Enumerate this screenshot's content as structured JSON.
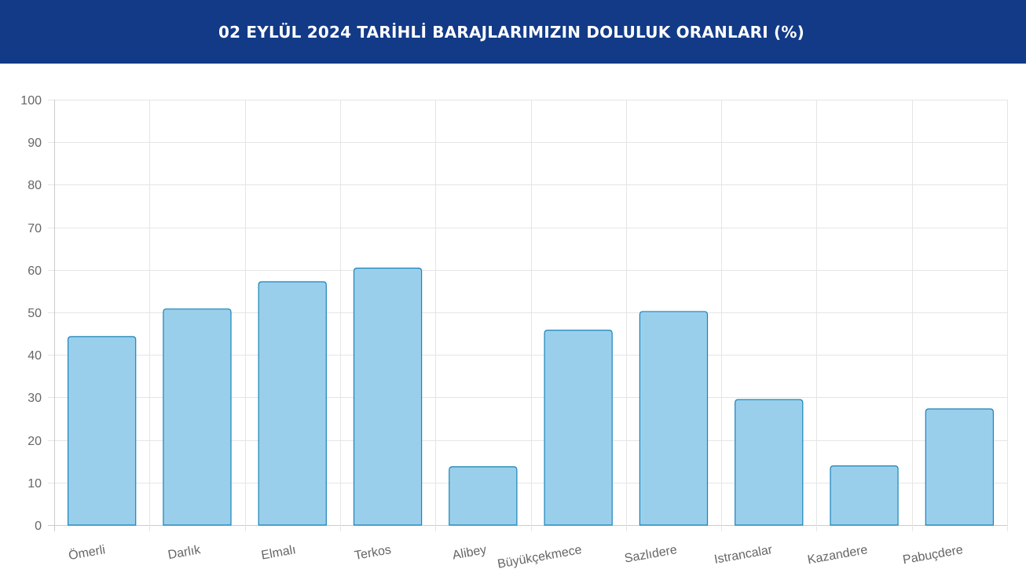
{
  "header": {
    "title": "02 EYLÜL 2024 TARİHLİ BARAJLARIMIZIN DOLULUK ORANLARI (%)"
  },
  "colors": {
    "header_bg": "#123a87",
    "bar_fill": "#9acfec",
    "bar_stroke": "#1a84b8",
    "grid": "#e5e5e5",
    "tick_text": "#666666"
  },
  "chart_data": {
    "type": "bar",
    "title": "02 EYLÜL 2024 TARİHLİ BARAJLARIMIZIN DOLULUK ORANLARI (%)",
    "categories": [
      "Ömerli",
      "Darlık",
      "Elmalı",
      "Terkos",
      "Alibey",
      "Büyükçekmece",
      "Sazlıdere",
      "Istrancalar",
      "Kazandere",
      "Pabuçdere"
    ],
    "series": [
      {
        "values": [
          44.3,
          50.8,
          57.2,
          60.4,
          13.7,
          45.8,
          50.2,
          29.5,
          13.9,
          27.3
        ]
      }
    ],
    "ylim": [
      0,
      100
    ],
    "yticks": [
      0,
      10,
      20,
      30,
      40,
      50,
      60,
      70,
      80,
      90,
      100
    ],
    "xlabel": "",
    "ylabel": "",
    "grid": true,
    "legend": "none"
  }
}
